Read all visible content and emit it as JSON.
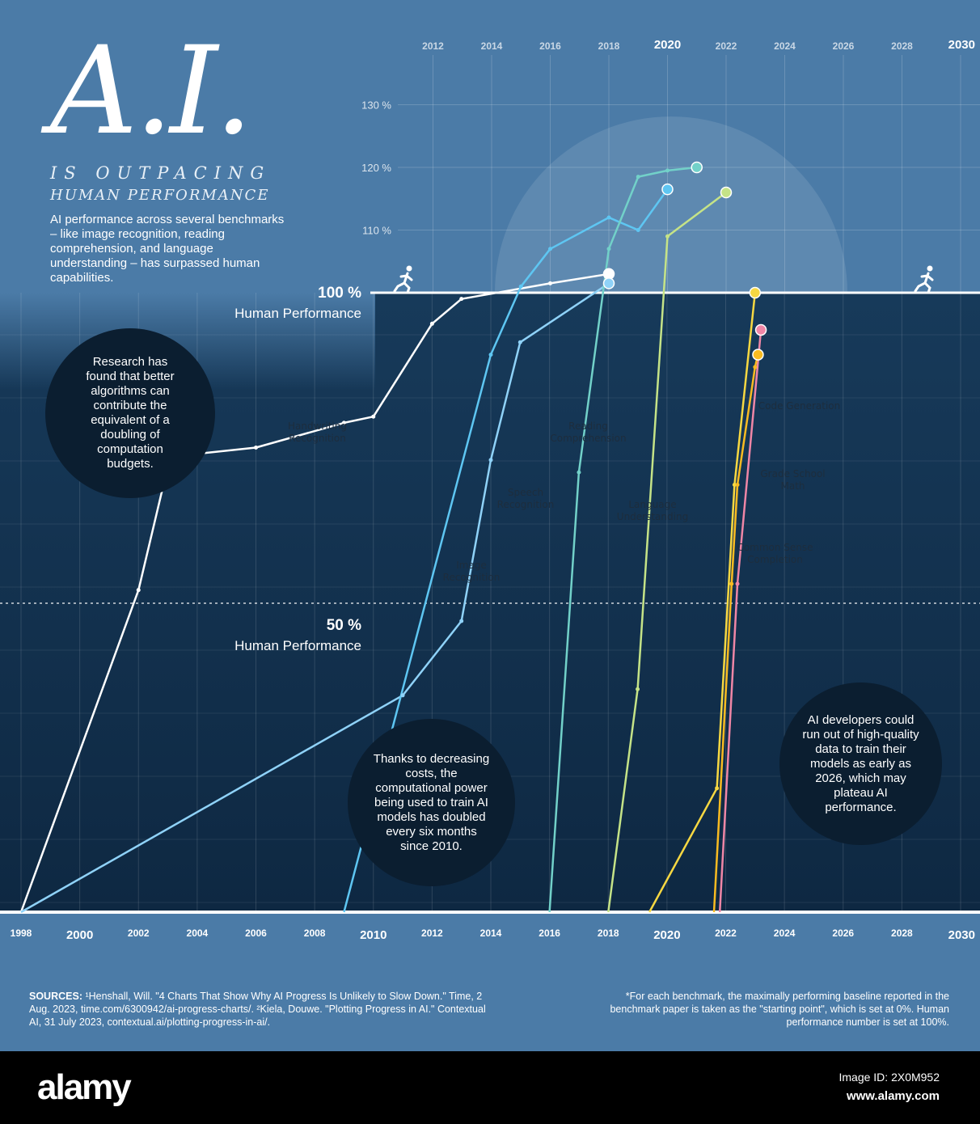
{
  "title": "A.I.",
  "subtitle_line1": "IS OUTPACING",
  "subtitle_line2": "HUMAN PERFORMANCE",
  "intro": "AI performance across several benchmarks – like image recognition, reading comprehension, and language understanding – has surpassed human capabilities.",
  "callouts": {
    "algorithms": "Research has found that better algorithms can contribute the equivalent of a doubling of computation budgets.",
    "compute": "Thanks to decreasing costs, the computational power being used to train AI models has doubled every six months since 2010.",
    "data": "AI developers could run out of high-quality data to train their models as early as 2026, which may plateau AI performance."
  },
  "human_performance": {
    "label": "Human Performance",
    "pct_100": "100 %",
    "pct_50": "50 %"
  },
  "sources": {
    "label": "SOURCES:",
    "text": " ¹Henshall, Will. \"4 Charts That Show Why AI Progress Is Unlikely to Slow Down.\" Time, 2 Aug. 2023, time.com/6300942/ai-progress-charts/. ²Kiela, Douwe. \"Plotting Progress in AI.\" Contextual AI, 31 July 2023, contextual.ai/plotting-progress-in-ai/."
  },
  "footnote": "*For each benchmark, the maximally performing baseline reported in the benchmark paper is taken as the \"starting point\", which is set at 0%. Human performance number is set at 100%.",
  "banner": {
    "brand": "alamy",
    "image_id": "Image ID: 2X0M952",
    "site": "www.alamy.com"
  },
  "colors": {
    "background": "#4b7ba7",
    "panel": "#12314f",
    "handwriting": "#ffffff",
    "speech": "#5ec6f2",
    "image": "#8fd2f8",
    "reading": "#72d1c9",
    "language": "#c5e387",
    "code": "#f9bb21",
    "math": "#ef86a6",
    "common_sense": "#f7d842"
  },
  "chart_data": {
    "type": "line",
    "upper_axis": {
      "ticks": [
        "2012",
        "2014",
        "2016",
        "2018",
        "2020",
        "2022",
        "2024",
        "2026",
        "2028",
        "2030"
      ],
      "years": [
        2012,
        2014,
        2016,
        2018,
        2020,
        2022,
        2024,
        2026,
        2028,
        2030
      ],
      "major": [
        2020,
        2030
      ],
      "range": [
        2010,
        2030
      ]
    },
    "lower_axis": {
      "ticks": [
        "1998",
        "2000",
        "2002",
        "2004",
        "2006",
        "2008",
        "2010",
        "2012",
        "2014",
        "2016",
        "2018",
        "2020",
        "2022",
        "2024",
        "2026",
        "2028",
        "2030"
      ],
      "years": [
        1998,
        2000,
        2002,
        2004,
        2006,
        2008,
        2010,
        2012,
        2014,
        2016,
        2018,
        2020,
        2022,
        2024,
        2026,
        2028,
        2030
      ],
      "major": [
        2000,
        2010,
        2020,
        2030
      ],
      "range": [
        1998,
        2030
      ]
    },
    "y_ticks": [
      "110 %",
      "120 %",
      "130 %"
    ],
    "y_tick_values": [
      110,
      120,
      130
    ],
    "ylim": [
      0,
      130
    ],
    "series": [
      {
        "name": "Handwriting Recognition",
        "color": "#ffffff",
        "end_marker": true,
        "points": [
          [
            1998,
            0
          ],
          [
            2002,
            52
          ],
          [
            2003,
            72
          ],
          [
            2004,
            74
          ],
          [
            2006,
            75
          ],
          [
            2009,
            79
          ],
          [
            2010,
            80
          ],
          [
            2012,
            95
          ],
          [
            2013,
            99
          ],
          [
            2016,
            101.5
          ],
          [
            2018,
            103
          ]
        ]
      },
      {
        "name": "Image Recognition",
        "color": "#8fd2f8",
        "end_marker": true,
        "points": [
          [
            1998,
            0
          ],
          [
            2011,
            35
          ],
          [
            2013,
            47
          ],
          [
            2014,
            73
          ],
          [
            2015,
            92
          ],
          [
            2018,
            101.5
          ]
        ]
      },
      {
        "name": "Speech Recognition",
        "color": "#5ec6f2",
        "end_marker": true,
        "points": [
          [
            2009,
            0
          ],
          [
            2014,
            90
          ],
          [
            2015,
            101
          ],
          [
            2016,
            107
          ],
          [
            2018,
            112
          ],
          [
            2019,
            110
          ],
          [
            2020,
            116.5
          ]
        ]
      },
      {
        "name": "Reading Comprehension",
        "color": "#72d1c9",
        "end_marker": true,
        "points": [
          [
            2016,
            0
          ],
          [
            2017,
            71
          ],
          [
            2018,
            107
          ],
          [
            2019,
            118.5
          ],
          [
            2020,
            119.5
          ],
          [
            2021,
            120
          ]
        ]
      },
      {
        "name": "Language Understanding",
        "color": "#c5e387",
        "end_marker": true,
        "points": [
          [
            2018,
            0
          ],
          [
            2019,
            36
          ],
          [
            2020,
            109
          ],
          [
            2022,
            116
          ]
        ]
      },
      {
        "name": "Common Sense Completion",
        "color": "#f7d842",
        "end_marker": true,
        "points": [
          [
            2019.4,
            0
          ],
          [
            2021.7,
            20
          ],
          [
            2022.3,
            69
          ],
          [
            2023,
            100
          ]
        ]
      },
      {
        "name": "Grade School Math",
        "color": "#ef86a6",
        "end_marker": true,
        "points": [
          [
            2021.8,
            0
          ],
          [
            2022.4,
            53
          ],
          [
            2023.2,
            94
          ]
        ]
      },
      {
        "name": "Code Generation",
        "color": "#f9bb21",
        "end_marker": true,
        "points": [
          [
            2021.6,
            0
          ],
          [
            2022.2,
            53
          ],
          [
            2022.4,
            69
          ],
          [
            2023,
            88
          ],
          [
            2023.1,
            90
          ]
        ]
      }
    ]
  },
  "series_labels": [
    {
      "text": "Handwriting Recognition",
      "bg": "#ffffff"
    },
    {
      "text": "Image Recognition",
      "bg": "#5ec6f2"
    },
    {
      "text": "Speech Recognition",
      "bg": "#a6dcf6"
    },
    {
      "text": "Reading Comprehension",
      "bg": "#72d1c9"
    },
    {
      "text": "Language Understanding",
      "bg": "#c5e387"
    },
    {
      "text": "Code Generation",
      "bg": "#f9bb21"
    },
    {
      "text": "Grade School Math",
      "bg": "#ef86a6"
    },
    {
      "text": "Common Sense Completion",
      "bg": "#f7d842"
    }
  ]
}
